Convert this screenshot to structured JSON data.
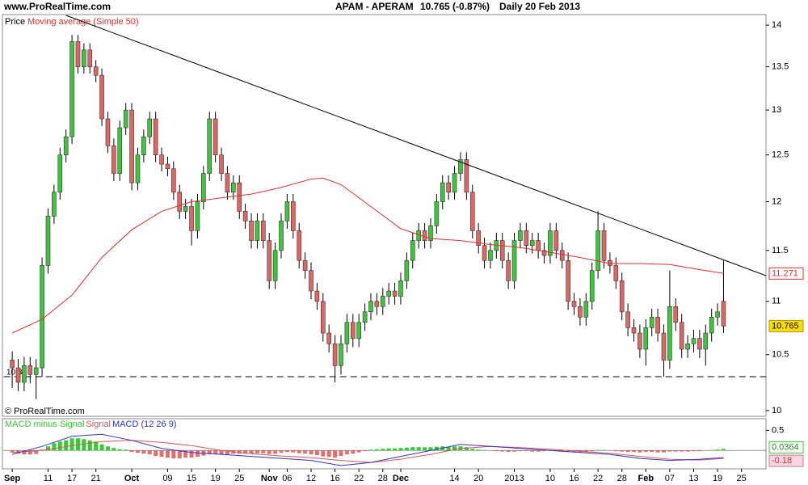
{
  "chart_data": [
    {
      "type": "candlestick",
      "source": "www.ProRealTime.com",
      "title": "APAM - APERAM",
      "quote": "10.765 (-0.87%)",
      "period": "Daily",
      "date": "20 Feb 2013",
      "copyright": "© ProRealTime.com",
      "log_scale": true,
      "grid": false,
      "ylim": [
        9.95,
        14.13
      ],
      "yticks": [
        10,
        10.5,
        11,
        11.5,
        12,
        12.5,
        13,
        13.5,
        14
      ],
      "xlim": [
        -1.5,
        126.1
      ],
      "xticks": [
        {
          "value": 0,
          "label": "Sep"
        },
        {
          "value": 6,
          "label": "11"
        },
        {
          "value": 10,
          "label": "17"
        },
        {
          "value": 14,
          "label": "21"
        },
        {
          "value": 20,
          "label": "Oct"
        },
        {
          "value": 26,
          "label": "09"
        },
        {
          "value": 30,
          "label": "15"
        },
        {
          "value": 34,
          "label": "19"
        },
        {
          "value": 38,
          "label": "25"
        },
        {
          "value": 43,
          "label": "Nov"
        },
        {
          "value": 46,
          "label": "06"
        },
        {
          "value": 50,
          "label": "12"
        },
        {
          "value": 54,
          "label": "16"
        },
        {
          "value": 58,
          "label": "22"
        },
        {
          "value": 62,
          "label": "28"
        },
        {
          "value": 65,
          "label": "Dec"
        },
        {
          "value": 74,
          "label": "14"
        },
        {
          "value": 78,
          "label": "20"
        },
        {
          "value": 84,
          "label": "2013"
        },
        {
          "value": 90,
          "label": "10"
        },
        {
          "value": 94,
          "label": "16"
        },
        {
          "value": 98,
          "label": "22"
        },
        {
          "value": 102,
          "label": "28"
        },
        {
          "value": 106,
          "label": "Feb"
        },
        {
          "value": 110,
          "label": "07"
        },
        {
          "value": 114,
          "label": "13"
        },
        {
          "value": 118,
          "label": "19"
        },
        {
          "value": 122,
          "label": "25"
        }
      ],
      "candles": {
        "name": "Price",
        "up_color": "#3ec43e",
        "down_color": "#e06666",
        "open": [
          10.45,
          10.38,
          10.25,
          10.4,
          10.32,
          10.38,
          11.35,
          11.85,
          12.1,
          12.5,
          12.7,
          13.8,
          13.5,
          13.7,
          13.5,
          13.4,
          12.9,
          12.6,
          12.3,
          12.8,
          13.0,
          12.2,
          12.5,
          12.7,
          12.9,
          12.5,
          12.4,
          12.35,
          12.1,
          11.9,
          11.95,
          11.7,
          12.0,
          12.3,
          12.9,
          12.5,
          12.3,
          12.1,
          12.2,
          11.9,
          11.8,
          11.6,
          11.8,
          11.6,
          11.2,
          11.5,
          11.8,
          12.0,
          11.7,
          11.4,
          11.3,
          11.1,
          11.0,
          10.7,
          10.6,
          10.4,
          10.6,
          10.8,
          10.65,
          10.8,
          10.9,
          11.0,
          10.95,
          11.05,
          11.1,
          11.05,
          11.2,
          11.4,
          11.6,
          11.7,
          11.6,
          11.75,
          12.0,
          12.2,
          12.1,
          12.3,
          12.45,
          12.1,
          11.7,
          11.55,
          11.4,
          11.5,
          11.6,
          11.4,
          11.2,
          11.6,
          11.7,
          11.55,
          11.6,
          11.5,
          11.45,
          11.7,
          11.5,
          11.4,
          11.0,
          10.95,
          10.85,
          11.0,
          11.3,
          11.7,
          11.4,
          11.35,
          11.2,
          10.9,
          10.75,
          10.7,
          10.55,
          10.75,
          10.85,
          10.7,
          10.45,
          10.95,
          10.8,
          10.55,
          10.6,
          10.65,
          10.55,
          10.7,
          10.85,
          11.0
        ],
        "high": [
          10.53,
          10.46,
          10.48,
          10.48,
          10.46,
          11.43,
          11.93,
          12.18,
          12.58,
          12.78,
          13.88,
          13.88,
          13.78,
          13.78,
          13.58,
          13.48,
          12.98,
          12.68,
          12.88,
          13.08,
          13.08,
          12.58,
          12.78,
          12.98,
          12.98,
          12.58,
          12.48,
          12.43,
          12.18,
          12.03,
          12.03,
          12.08,
          12.38,
          12.98,
          12.98,
          12.58,
          12.38,
          12.28,
          12.28,
          11.98,
          11.88,
          11.88,
          11.88,
          11.68,
          11.58,
          11.88,
          12.08,
          12.08,
          11.78,
          11.48,
          11.38,
          11.18,
          11.08,
          10.78,
          10.68,
          10.68,
          10.88,
          10.88,
          10.88,
          10.98,
          11.08,
          11.08,
          11.13,
          11.18,
          11.18,
          11.28,
          11.48,
          11.68,
          11.78,
          11.78,
          11.83,
          12.08,
          12.28,
          12.28,
          12.38,
          12.53,
          12.53,
          12.18,
          11.78,
          11.63,
          11.58,
          11.68,
          11.68,
          11.48,
          11.68,
          11.78,
          11.78,
          11.68,
          11.68,
          11.58,
          11.78,
          11.78,
          11.58,
          11.48,
          11.08,
          11.03,
          11.08,
          11.38,
          11.9,
          11.78,
          11.48,
          11.43,
          11.28,
          10.98,
          10.83,
          10.78,
          10.83,
          10.93,
          10.93,
          10.78,
          11.3,
          11.03,
          10.88,
          10.68,
          10.73,
          10.73,
          10.78,
          10.93,
          10.98,
          11.4
        ],
        "low": [
          10.2,
          10.17,
          10.17,
          10.24,
          10.1,
          10.3,
          11.27,
          11.77,
          12.02,
          12.42,
          12.62,
          13.42,
          13.42,
          13.42,
          13.32,
          12.82,
          12.52,
          12.22,
          12.22,
          12.72,
          12.12,
          12.12,
          12.42,
          12.62,
          12.42,
          12.32,
          12.27,
          12.02,
          11.82,
          11.82,
          11.55,
          11.62,
          11.92,
          12.22,
          12.42,
          12.22,
          12.02,
          12.02,
          11.82,
          11.72,
          11.52,
          11.52,
          11.52,
          11.12,
          11.12,
          11.42,
          11.72,
          11.62,
          11.32,
          11.22,
          11.02,
          10.92,
          10.62,
          10.52,
          10.25,
          10.32,
          10.52,
          10.57,
          10.57,
          10.72,
          10.82,
          10.87,
          10.87,
          10.97,
          10.97,
          10.97,
          11.12,
          11.32,
          11.52,
          11.52,
          11.52,
          11.67,
          11.92,
          12.02,
          12.02,
          12.22,
          12.02,
          11.62,
          11.47,
          11.32,
          11.32,
          11.42,
          11.32,
          11.12,
          11.12,
          11.52,
          11.47,
          11.47,
          11.42,
          11.37,
          11.37,
          11.42,
          11.32,
          10.92,
          10.87,
          10.77,
          10.77,
          10.92,
          11.22,
          11.32,
          11.27,
          11.12,
          10.82,
          10.67,
          10.62,
          10.47,
          10.4,
          10.67,
          10.62,
          10.3,
          10.37,
          10.72,
          10.47,
          10.47,
          10.52,
          10.47,
          10.4,
          10.62,
          10.77,
          10.7
        ],
        "close": [
          10.38,
          10.25,
          10.4,
          10.32,
          10.38,
          11.35,
          11.85,
          12.1,
          12.5,
          12.7,
          13.8,
          13.5,
          13.7,
          13.5,
          13.4,
          12.9,
          12.6,
          12.3,
          12.8,
          13.0,
          12.2,
          12.5,
          12.7,
          12.9,
          12.5,
          12.4,
          12.35,
          12.1,
          11.9,
          11.95,
          11.7,
          12.0,
          12.3,
          12.9,
          12.5,
          12.3,
          12.1,
          12.2,
          11.9,
          11.8,
          11.6,
          11.8,
          11.6,
          11.2,
          11.5,
          11.8,
          12.0,
          11.7,
          11.4,
          11.3,
          11.1,
          11.0,
          10.7,
          10.6,
          10.4,
          10.6,
          10.8,
          10.65,
          10.8,
          10.9,
          11.0,
          10.95,
          11.05,
          11.1,
          11.05,
          11.2,
          11.4,
          11.6,
          11.7,
          11.6,
          11.75,
          12.0,
          12.2,
          12.1,
          12.3,
          12.45,
          12.1,
          11.7,
          11.55,
          11.4,
          11.5,
          11.6,
          11.4,
          11.2,
          11.6,
          11.7,
          11.55,
          11.6,
          11.5,
          11.45,
          11.7,
          11.5,
          11.4,
          11.0,
          10.95,
          10.85,
          11.0,
          11.3,
          11.7,
          11.4,
          11.35,
          11.2,
          10.9,
          10.75,
          10.7,
          10.55,
          10.75,
          10.85,
          10.7,
          10.45,
          10.95,
          10.8,
          10.55,
          10.6,
          10.65,
          10.55,
          10.7,
          10.85,
          10.9,
          10.765
        ]
      },
      "series": [
        {
          "name": "Moving average (Simple 50)",
          "color": "#e03030",
          "x": [
            0,
            5,
            10,
            15,
            20,
            25,
            30,
            35,
            40,
            45,
            50,
            52,
            55,
            60,
            65,
            70,
            75,
            80,
            85,
            90,
            95,
            100,
            105,
            110,
            115,
            119
          ],
          "values": [
            10.7,
            10.83,
            11.06,
            11.43,
            11.71,
            11.9,
            12.0,
            12.04,
            12.08,
            12.15,
            12.24,
            12.25,
            12.18,
            11.95,
            11.72,
            11.62,
            11.6,
            11.56,
            11.53,
            11.48,
            11.43,
            11.37,
            11.37,
            11.36,
            11.31,
            11.271
          ]
        }
      ],
      "trend_line": {
        "x": [
          9,
          126.1
        ],
        "values": [
          14.12,
          11.25
        ]
      },
      "support": {
        "x": [
          -1.4,
          126.1
        ],
        "values": [
          10.3,
          10.3
        ]
      }
    },
    {
      "type": "macd",
      "ylim": [
        -0.46,
        0.79
      ],
      "yticks": [
        0.5
      ],
      "series": [
        {
          "name": "MACD minus Signal",
          "kind": "bar",
          "color": "#33cc33",
          "negative_color": "#e07070",
          "values": [
            -0.05,
            -0.08,
            -0.1,
            -0.1,
            -0.09,
            0.02,
            0.1,
            0.18,
            0.22,
            0.25,
            0.3,
            0.3,
            0.28,
            0.25,
            0.22,
            0.15,
            0.1,
            0.06,
            0.03,
            0.02,
            -0.04,
            -0.06,
            -0.08,
            -0.1,
            -0.14,
            -0.16,
            -0.18,
            -0.2,
            -0.2,
            -0.18,
            -0.18,
            -0.16,
            -0.13,
            -0.1,
            -0.1,
            -0.1,
            -0.1,
            -0.08,
            -0.08,
            -0.08,
            -0.08,
            -0.07,
            -0.07,
            -0.09,
            -0.08,
            -0.06,
            -0.04,
            -0.05,
            -0.07,
            -0.08,
            -0.1,
            -0.12,
            -0.15,
            -0.16,
            -0.18,
            -0.14,
            -0.1,
            -0.08,
            -0.05,
            -0.02,
            0.02,
            0.03,
            0.04,
            0.05,
            0.05,
            0.06,
            0.07,
            0.08,
            0.08,
            0.08,
            0.08,
            0.09,
            0.1,
            0.09,
            0.1,
            0.1,
            0.08,
            0.04,
            0.02,
            0.01,
            -0.01,
            -0.02,
            -0.03,
            -0.04,
            -0.03,
            -0.02,
            -0.02,
            -0.03,
            -0.03,
            -0.02,
            -0.01,
            -0.02,
            -0.03,
            -0.04,
            -0.05,
            -0.05,
            -0.04,
            -0.02,
            0.01,
            0.01,
            -0.01,
            -0.02,
            -0.03,
            -0.04,
            -0.04,
            -0.05,
            -0.04,
            -0.04,
            -0.05,
            -0.05,
            -0.03,
            -0.03,
            -0.03,
            -0.03,
            -0.02,
            -0.02,
            -0.01,
            0.01,
            0.02,
            0.0364
          ]
        },
        {
          "name": "Signal",
          "kind": "line",
          "color": "#d05a5a",
          "x": [
            0,
            5,
            10,
            15,
            20,
            25,
            30,
            35,
            40,
            45,
            50,
            55,
            60,
            65,
            70,
            75,
            80,
            85,
            90,
            95,
            100,
            105,
            110,
            115,
            119
          ],
          "values": [
            -0.05,
            0.0,
            0.12,
            0.22,
            0.25,
            0.2,
            0.12,
            0.0,
            -0.08,
            -0.14,
            -0.18,
            -0.25,
            -0.3,
            -0.22,
            -0.1,
            0.05,
            0.1,
            0.07,
            0.03,
            -0.02,
            -0.07,
            -0.15,
            -0.22,
            -0.24,
            -0.2
          ]
        },
        {
          "name": "MACD (12 26 9)",
          "kind": "line",
          "color": "#3333cc",
          "x": [
            0,
            5,
            10,
            15,
            20,
            25,
            30,
            35,
            40,
            45,
            50,
            55,
            60,
            65,
            70,
            75,
            80,
            85,
            90,
            95,
            100,
            105,
            110,
            115,
            119
          ],
          "values": [
            -0.1,
            0.1,
            0.35,
            0.4,
            0.25,
            0.05,
            -0.05,
            -0.1,
            -0.15,
            -0.2,
            -0.25,
            -0.38,
            -0.3,
            -0.15,
            0.0,
            0.15,
            0.1,
            0.05,
            0.0,
            -0.05,
            -0.1,
            -0.2,
            -0.25,
            -0.22,
            -0.18
          ]
        }
      ]
    }
  ]
}
